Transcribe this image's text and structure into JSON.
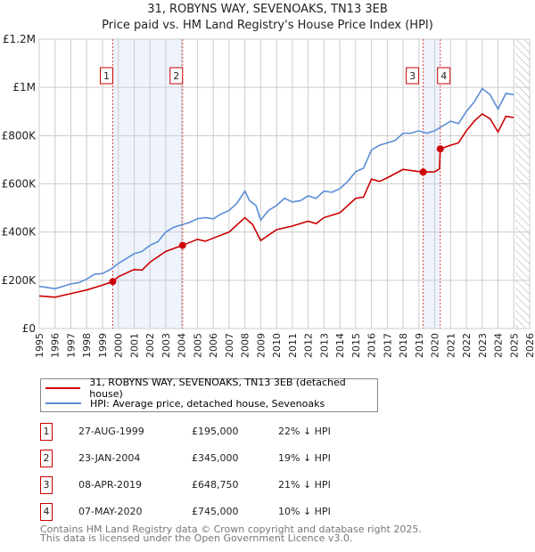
{
  "title": "31, ROBYNS WAY, SEVENOAKS, TN13 3EB",
  "subtitle": "Price paid vs. HM Land Registry's House Price Index (HPI)",
  "colors": {
    "red": "#cc0000",
    "hpi": "#5b8dd6",
    "shade": "#eef3fc"
  },
  "chart_data": {
    "type": "line",
    "xlim": [
      1995,
      2026
    ],
    "ylim": [
      0,
      1200000
    ],
    "yticks": [
      {
        "v": 0,
        "label": "£0"
      },
      {
        "v": 200000,
        "label": "£200K"
      },
      {
        "v": 400000,
        "label": "£400K"
      },
      {
        "v": 600000,
        "label": "£600K"
      },
      {
        "v": 800000,
        "label": "£800K"
      },
      {
        "v": 1000000,
        "label": "£1M"
      },
      {
        "v": 1200000,
        "label": "£1.2M"
      }
    ],
    "xticks": [
      "1995",
      "1996",
      "1997",
      "1998",
      "1999",
      "2000",
      "2001",
      "2002",
      "2003",
      "2004",
      "2005",
      "2006",
      "2007",
      "2008",
      "2009",
      "2010",
      "2011",
      "2012",
      "2013",
      "2014",
      "2015",
      "2016",
      "2017",
      "2018",
      "2019",
      "2020",
      "2021",
      "2022",
      "2023",
      "2024",
      "2025",
      "2026"
    ],
    "shaded_periods": [
      [
        1999.65,
        2004.06
      ],
      [
        2019.27,
        2020.35
      ]
    ],
    "forecast_hatch_from": 2025.1,
    "series": [
      {
        "name": "31, ROBYNS WAY, SEVENOAKS, TN13 3EB (detached house)",
        "color": "#cc0000",
        "points": [
          [
            1995,
            135000
          ],
          [
            1996,
            130000
          ],
          [
            1997,
            145000
          ],
          [
            1998,
            160000
          ],
          [
            1999,
            180000
          ],
          [
            1999.65,
            195000
          ],
          [
            2000,
            215000
          ],
          [
            2001,
            245000
          ],
          [
            2001.5,
            242000
          ],
          [
            2002,
            275000
          ],
          [
            2003,
            320000
          ],
          [
            2004.06,
            345000
          ],
          [
            2005,
            370000
          ],
          [
            2005.5,
            362000
          ],
          [
            2006,
            375000
          ],
          [
            2007,
            400000
          ],
          [
            2008,
            460000
          ],
          [
            2008.5,
            430000
          ],
          [
            2009,
            365000
          ],
          [
            2010,
            410000
          ],
          [
            2011,
            425000
          ],
          [
            2012,
            445000
          ],
          [
            2012.5,
            435000
          ],
          [
            2013,
            460000
          ],
          [
            2014,
            480000
          ],
          [
            2015,
            540000
          ],
          [
            2015.5,
            545000
          ],
          [
            2016,
            620000
          ],
          [
            2016.5,
            610000
          ],
          [
            2017,
            625000
          ],
          [
            2018,
            660000
          ],
          [
            2018.5,
            655000
          ],
          [
            2019.27,
            648750
          ],
          [
            2020,
            650000
          ],
          [
            2020.3,
            662000
          ],
          [
            2020.35,
            745000
          ],
          [
            2021,
            760000
          ],
          [
            2021.5,
            770000
          ],
          [
            2022,
            820000
          ],
          [
            2022.5,
            860000
          ],
          [
            2023,
            890000
          ],
          [
            2023.5,
            870000
          ],
          [
            2024,
            815000
          ],
          [
            2024.5,
            880000
          ],
          [
            2025,
            875000
          ]
        ]
      },
      {
        "name": "HPI: Average price, detached house, Sevenoaks",
        "color": "#5b8dd6",
        "points": [
          [
            1995,
            175000
          ],
          [
            1995.5,
            170000
          ],
          [
            1996,
            165000
          ],
          [
            1996.5,
            175000
          ],
          [
            1997,
            185000
          ],
          [
            1997.5,
            190000
          ],
          [
            1998,
            205000
          ],
          [
            1998.5,
            225000
          ],
          [
            1999,
            228000
          ],
          [
            1999.5,
            245000
          ],
          [
            2000,
            270000
          ],
          [
            2000.5,
            290000
          ],
          [
            2001,
            310000
          ],
          [
            2001.5,
            320000
          ],
          [
            2002,
            345000
          ],
          [
            2002.5,
            360000
          ],
          [
            2003,
            400000
          ],
          [
            2003.5,
            420000
          ],
          [
            2004,
            430000
          ],
          [
            2004.5,
            440000
          ],
          [
            2005,
            455000
          ],
          [
            2005.5,
            460000
          ],
          [
            2006,
            455000
          ],
          [
            2006.5,
            475000
          ],
          [
            2007,
            490000
          ],
          [
            2007.5,
            520000
          ],
          [
            2008,
            570000
          ],
          [
            2008.3,
            530000
          ],
          [
            2008.7,
            510000
          ],
          [
            2009,
            450000
          ],
          [
            2009.5,
            490000
          ],
          [
            2010,
            510000
          ],
          [
            2010.5,
            540000
          ],
          [
            2011,
            525000
          ],
          [
            2011.5,
            530000
          ],
          [
            2012,
            550000
          ],
          [
            2012.5,
            540000
          ],
          [
            2013,
            570000
          ],
          [
            2013.5,
            565000
          ],
          [
            2014,
            580000
          ],
          [
            2014.5,
            610000
          ],
          [
            2015,
            650000
          ],
          [
            2015.5,
            665000
          ],
          [
            2016,
            740000
          ],
          [
            2016.5,
            760000
          ],
          [
            2017,
            770000
          ],
          [
            2017.5,
            780000
          ],
          [
            2018,
            810000
          ],
          [
            2018.5,
            810000
          ],
          [
            2019,
            820000
          ],
          [
            2019.5,
            810000
          ],
          [
            2020,
            820000
          ],
          [
            2020.5,
            840000
          ],
          [
            2021,
            860000
          ],
          [
            2021.5,
            850000
          ],
          [
            2022,
            900000
          ],
          [
            2022.5,
            940000
          ],
          [
            2023,
            995000
          ],
          [
            2023.5,
            970000
          ],
          [
            2024,
            910000
          ],
          [
            2024.5,
            975000
          ],
          [
            2025,
            970000
          ]
        ]
      }
    ],
    "sales": [
      {
        "id": "1",
        "x": 1999.65,
        "price": 195000,
        "date": "27-AUG-1999",
        "price_label": "£195,000",
        "hpi": "22% ↓ HPI"
      },
      {
        "id": "2",
        "x": 2004.06,
        "price": 345000,
        "date": "23-JAN-2004",
        "price_label": "£345,000",
        "hpi": "19% ↓ HPI"
      },
      {
        "id": "3",
        "x": 2019.27,
        "price": 648750,
        "date": "08-APR-2019",
        "price_label": "£648,750",
        "hpi": "21% ↓ HPI"
      },
      {
        "id": "4",
        "x": 2020.35,
        "price": 745000,
        "date": "07-MAY-2020",
        "price_label": "£745,000",
        "hpi": "10% ↓ HPI"
      }
    ]
  },
  "footer": [
    "Contains HM Land Registry data © Crown copyright and database right 2025.",
    "This data is licensed under the Open Government Licence v3.0."
  ]
}
